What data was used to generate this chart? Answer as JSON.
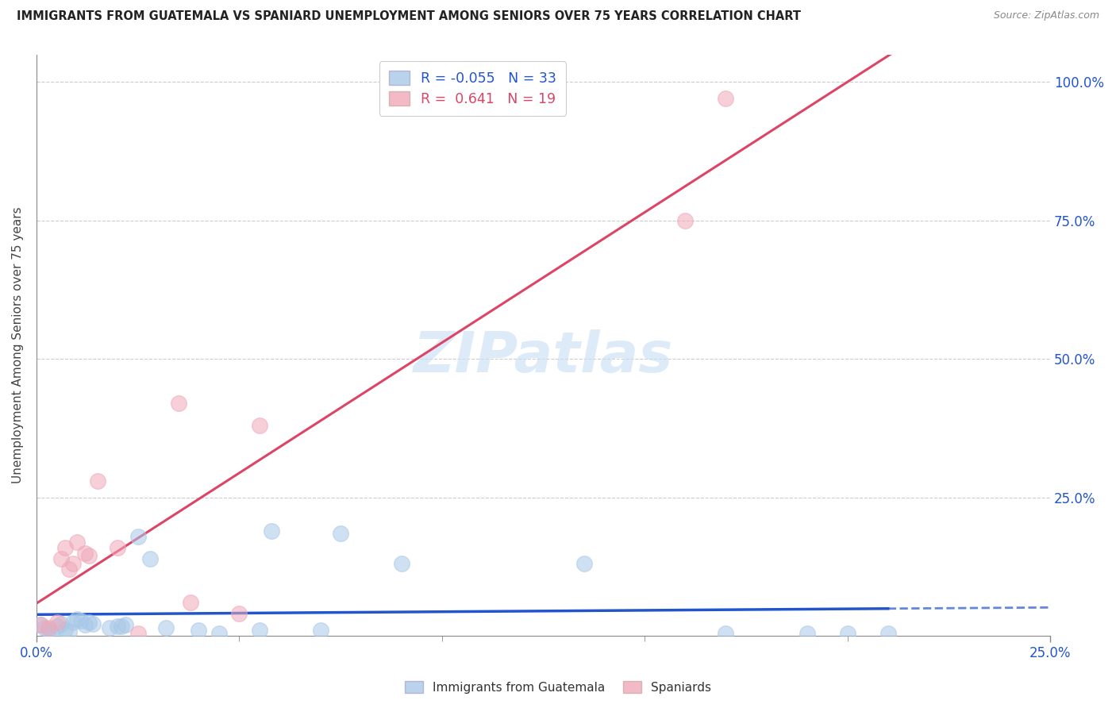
{
  "title": "IMMIGRANTS FROM GUATEMALA VS SPANIARD UNEMPLOYMENT AMONG SENIORS OVER 75 YEARS CORRELATION CHART",
  "source": "Source: ZipAtlas.com",
  "ylabel_label": "Unemployment Among Seniors over 75 years",
  "legend_label1": "Immigrants from Guatemala",
  "legend_label2": "Spaniards",
  "R1": -0.055,
  "N1": 33,
  "R2": 0.641,
  "N2": 19,
  "color_blue": "#a8c8e8",
  "color_pink": "#f0a8b8",
  "color_line_blue": "#2255cc",
  "color_line_pink": "#dd4466",
  "color_tick_blue": "#2255cc",
  "blue_x": [
    0.001,
    0.002,
    0.003,
    0.004,
    0.005,
    0.006,
    0.007,
    0.008,
    0.009,
    0.01,
    0.011,
    0.012,
    0.013,
    0.014,
    0.018,
    0.02,
    0.021,
    0.022,
    0.025,
    0.028,
    0.032,
    0.04,
    0.045,
    0.055,
    0.058,
    0.07,
    0.075,
    0.09,
    0.135,
    0.17,
    0.19,
    0.2,
    0.21
  ],
  "blue_y": [
    0.02,
    0.015,
    0.01,
    0.005,
    0.018,
    0.022,
    0.012,
    0.008,
    0.025,
    0.03,
    0.028,
    0.02,
    0.025,
    0.022,
    0.015,
    0.018,
    0.017,
    0.021,
    0.18,
    0.14,
    0.015,
    0.01,
    0.005,
    0.01,
    0.19,
    0.01,
    0.185,
    0.13,
    0.13,
    0.005,
    0.005,
    0.005,
    0.005
  ],
  "pink_x": [
    0.001,
    0.003,
    0.005,
    0.006,
    0.007,
    0.008,
    0.009,
    0.01,
    0.012,
    0.013,
    0.015,
    0.02,
    0.025,
    0.035,
    0.038,
    0.05,
    0.055,
    0.16,
    0.17
  ],
  "pink_y": [
    0.02,
    0.015,
    0.025,
    0.14,
    0.16,
    0.12,
    0.13,
    0.17,
    0.15,
    0.145,
    0.28,
    0.16,
    0.005,
    0.42,
    0.06,
    0.04,
    0.38,
    0.75,
    0.97
  ],
  "xlim": [
    0.0,
    0.25
  ],
  "ylim": [
    0.0,
    1.05
  ],
  "x_tick_vals": [
    0.0,
    0.25
  ],
  "y_tick_vals": [
    0.25,
    0.5,
    0.75,
    1.0
  ],
  "y_labels": [
    "25.0%",
    "50.0%",
    "75.0%",
    "100.0%"
  ]
}
